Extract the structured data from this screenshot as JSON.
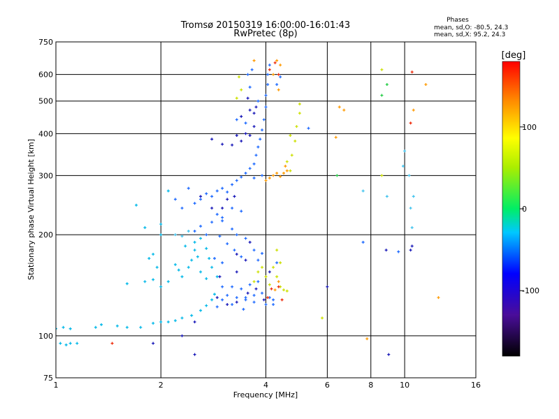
{
  "header": {
    "title": "Tromsø 20150319 16:00:00-16:01:43",
    "subtitle": "RwPretec (8p)"
  },
  "stats": {
    "heading": "Phases",
    "line_o": "mean, sd,O: -80.5, 24.3",
    "line_x": "mean, sd,X: 95.2, 24.3"
  },
  "chart_data": {
    "type": "scatter",
    "title": "Tromsø 20150319 16:00:00-16:01:43",
    "subtitle": "RwPretec (8p)",
    "xlabel": "Frequency [MHz]",
    "ylabel": "Stationary phase Virtual Height [km]",
    "x_scale": "log",
    "y_scale": "log",
    "xlim": [
      1,
      16
    ],
    "ylim": [
      75,
      750
    ],
    "x_ticks": [
      1,
      2,
      4,
      6,
      8,
      10,
      16
    ],
    "y_ticks": [
      75,
      100,
      200,
      300,
      400,
      500,
      600,
      750
    ],
    "grid": true,
    "colorbar": {
      "label": "[deg]",
      "range": [
        -180,
        180
      ],
      "ticks": [
        -100,
        0,
        100
      ],
      "colormap": "rainbow"
    },
    "series": [
      {
        "name": "",
        "color": "#00b8e8",
        "points": [
          [
            1.0,
            105
          ],
          [
            1.05,
            106
          ],
          [
            1.1,
            105
          ],
          [
            1.3,
            106
          ],
          [
            1.35,
            108
          ],
          [
            1.5,
            107
          ],
          [
            1.6,
            106
          ],
          [
            1.75,
            106
          ],
          [
            1.9,
            109
          ],
          [
            2.0,
            110
          ],
          [
            2.1,
            110
          ],
          [
            2.2,
            111
          ],
          [
            2.3,
            113
          ],
          [
            2.45,
            115
          ],
          [
            2.6,
            119
          ],
          [
            2.7,
            123
          ],
          [
            2.8,
            128
          ],
          [
            2.85,
            133
          ],
          [
            1.03,
            95
          ],
          [
            1.07,
            94
          ],
          [
            1.1,
            95
          ],
          [
            1.15,
            95
          ],
          [
            1.6,
            143
          ],
          [
            1.8,
            145
          ],
          [
            1.9,
            147
          ],
          [
            1.95,
            160
          ],
          [
            1.9,
            175
          ],
          [
            2.2,
            163
          ],
          [
            2.25,
            157
          ],
          [
            2.4,
            160
          ],
          [
            2.45,
            168
          ],
          [
            2.5,
            180
          ],
          [
            2.5,
            190
          ],
          [
            2.55,
            172
          ],
          [
            2.6,
            195
          ],
          [
            2.6,
            155
          ],
          [
            2.7,
            182
          ],
          [
            2.7,
            148
          ],
          [
            2.75,
            170
          ],
          [
            2.8,
            160
          ],
          [
            2.3,
            150
          ],
          [
            2.35,
            185
          ],
          [
            2.0,
            140
          ],
          [
            1.85,
            170
          ],
          [
            2.1,
            145
          ],
          [
            2.0,
            215
          ],
          [
            1.8,
            210
          ],
          [
            1.7,
            245
          ],
          [
            2.1,
            270
          ],
          [
            2.0,
            200
          ],
          [
            2.9,
            150
          ]
        ]
      },
      {
        "name": "",
        "color": "#1e6aff",
        "points": [
          [
            2.5,
            205
          ],
          [
            2.6,
            212
          ],
          [
            2.7,
            200
          ],
          [
            2.8,
            218
          ],
          [
            2.3,
            240
          ],
          [
            2.5,
            248
          ],
          [
            2.6,
            255
          ],
          [
            2.7,
            265
          ],
          [
            2.8,
            260
          ],
          [
            2.9,
            270
          ],
          [
            3.0,
            275
          ],
          [
            3.1,
            268
          ],
          [
            3.2,
            282
          ],
          [
            3.3,
            290
          ],
          [
            3.4,
            297
          ],
          [
            3.5,
            305
          ],
          [
            3.6,
            315
          ],
          [
            3.7,
            325
          ],
          [
            3.75,
            345
          ],
          [
            3.8,
            365
          ],
          [
            3.85,
            385
          ],
          [
            3.9,
            410
          ],
          [
            3.95,
            440
          ],
          [
            4.0,
            480
          ],
          [
            4.0,
            520
          ],
          [
            4.05,
            560
          ],
          [
            4.05,
            600
          ],
          [
            4.1,
            640
          ],
          [
            2.9,
            230
          ],
          [
            3.0,
            225
          ],
          [
            3.2,
            240
          ],
          [
            3.4,
            235
          ],
          [
            3.7,
            295
          ],
          [
            3.9,
            300
          ],
          [
            2.2,
            255
          ],
          [
            2.4,
            275
          ],
          [
            3.0,
            128
          ],
          [
            3.1,
            132
          ],
          [
            3.3,
            130
          ],
          [
            3.5,
            130
          ],
          [
            3.7,
            132
          ],
          [
            3.9,
            134
          ],
          [
            4.1,
            130
          ],
          [
            4.2,
            128
          ],
          [
            3.2,
            140
          ],
          [
            3.4,
            138
          ],
          [
            3.6,
            142
          ],
          [
            3.8,
            145
          ],
          [
            3.0,
            140
          ],
          [
            2.9,
            122
          ],
          [
            3.2,
            124
          ],
          [
            3.5,
            128
          ],
          [
            3.7,
            126
          ],
          [
            4.0,
            124
          ],
          [
            4.2,
            124
          ],
          [
            2.95,
            198
          ],
          [
            3.1,
            188
          ],
          [
            3.25,
            180
          ],
          [
            3.4,
            172
          ],
          [
            3.3,
            200
          ],
          [
            3.5,
            195
          ],
          [
            3.7,
            180
          ],
          [
            2.85,
            170
          ],
          [
            3.0,
            165
          ],
          [
            3.8,
            168
          ],
          [
            3.9,
            176
          ],
          [
            4.3,
            165
          ],
          [
            3.0,
            220
          ],
          [
            3.2,
            208
          ],
          [
            3.3,
            440
          ],
          [
            3.5,
            430
          ],
          [
            3.6,
            550
          ],
          [
            3.55,
            600
          ],
          [
            3.65,
            620
          ],
          [
            3.8,
            500
          ],
          [
            4.3,
            560
          ],
          [
            4.4,
            590
          ],
          [
            5.3,
            415
          ],
          [
            3.45,
            120
          ],
          [
            7.6,
            190
          ],
          [
            9.6,
            178
          ]
        ]
      },
      {
        "name": "",
        "color": "#1818b8",
        "points": [
          [
            2.6,
            260
          ],
          [
            2.8,
            240
          ],
          [
            3.1,
            255
          ],
          [
            3.25,
            260
          ],
          [
            3.0,
            240
          ],
          [
            3.3,
            395
          ],
          [
            3.4,
            380
          ],
          [
            3.5,
            400
          ],
          [
            3.6,
            395
          ],
          [
            3.7,
            420
          ],
          [
            3.4,
            450
          ],
          [
            3.55,
            510
          ],
          [
            3.6,
            470
          ],
          [
            3.7,
            460
          ],
          [
            3.75,
            480
          ],
          [
            2.8,
            385
          ],
          [
            3.0,
            372
          ],
          [
            3.2,
            370
          ],
          [
            2.9,
            130
          ],
          [
            3.1,
            124
          ],
          [
            3.3,
            126
          ],
          [
            3.55,
            134
          ],
          [
            3.75,
            138
          ],
          [
            3.95,
            128
          ],
          [
            3.3,
            175
          ],
          [
            3.5,
            168
          ],
          [
            3.6,
            190
          ],
          [
            4.1,
            155
          ],
          [
            2.95,
            150
          ],
          [
            3.3,
            155
          ],
          [
            2.5,
            110
          ],
          [
            1.9,
            95
          ],
          [
            2.5,
            88
          ],
          [
            2.3,
            100
          ],
          [
            8.85,
            180
          ],
          [
            9.0,
            88
          ],
          [
            10.4,
            180
          ],
          [
            6.0,
            140
          ],
          [
            10.5,
            185
          ]
        ]
      },
      {
        "name": "",
        "color": "#44c4ee",
        "points": [
          [
            2.2,
            200
          ],
          [
            2.3,
            198
          ],
          [
            2.4,
            205
          ],
          [
            7.6,
            270
          ],
          [
            8.9,
            260
          ],
          [
            10.4,
            240
          ],
          [
            10.5,
            210
          ],
          [
            10.6,
            260
          ],
          [
            9.9,
            320
          ],
          [
            10.0,
            355
          ],
          [
            10.3,
            300
          ]
        ]
      },
      {
        "name": "",
        "color": "#cce000",
        "points": [
          [
            3.7,
            145
          ],
          [
            3.8,
            155
          ],
          [
            4.0,
            150
          ],
          [
            4.1,
            142
          ],
          [
            4.3,
            150
          ],
          [
            4.4,
            140
          ],
          [
            4.5,
            137
          ],
          [
            4.6,
            136
          ],
          [
            3.9,
            160
          ],
          [
            4.2,
            160
          ],
          [
            4.4,
            165
          ],
          [
            4.3,
            180
          ],
          [
            4.7,
            310
          ],
          [
            4.75,
            345
          ],
          [
            4.85,
            380
          ],
          [
            4.9,
            420
          ],
          [
            5.0,
            460
          ],
          [
            5.0,
            490
          ],
          [
            4.7,
            395
          ],
          [
            4.6,
            330
          ],
          [
            3.35,
            590
          ],
          [
            3.3,
            510
          ],
          [
            3.4,
            540
          ],
          [
            5.8,
            113
          ],
          [
            8.6,
            620
          ],
          [
            8.6,
            300
          ]
        ]
      },
      {
        "name": "",
        "color": "#ff9a00",
        "points": [
          [
            4.0,
            290
          ],
          [
            4.1,
            295
          ],
          [
            4.2,
            300
          ],
          [
            4.3,
            305
          ],
          [
            4.4,
            298
          ],
          [
            4.5,
            305
          ],
          [
            4.55,
            320
          ],
          [
            4.6,
            310
          ],
          [
            4.25,
            137
          ],
          [
            4.35,
            145
          ],
          [
            4.3,
            660
          ],
          [
            4.4,
            640
          ],
          [
            4.35,
            540
          ],
          [
            4.2,
            600
          ],
          [
            3.7,
            660
          ],
          [
            6.5,
            480
          ],
          [
            6.7,
            470
          ],
          [
            6.35,
            390
          ],
          [
            7.8,
            98
          ],
          [
            10.6,
            470
          ],
          [
            11.5,
            560
          ],
          [
            12.5,
            130
          ]
        ]
      },
      {
        "name": "",
        "color": "#ee2a0a",
        "points": [
          [
            4.05,
            130
          ],
          [
            4.15,
            138
          ],
          [
            4.35,
            140
          ],
          [
            4.45,
            128
          ],
          [
            4.1,
            620
          ],
          [
            4.25,
            650
          ],
          [
            4.35,
            600
          ],
          [
            10.5,
            610
          ],
          [
            10.4,
            430
          ],
          [
            1.45,
            95
          ]
        ]
      },
      {
        "name": "",
        "color": "#22cc44",
        "points": [
          [
            8.6,
            520
          ],
          [
            8.9,
            560
          ],
          [
            6.4,
            300
          ]
        ]
      }
    ]
  }
}
